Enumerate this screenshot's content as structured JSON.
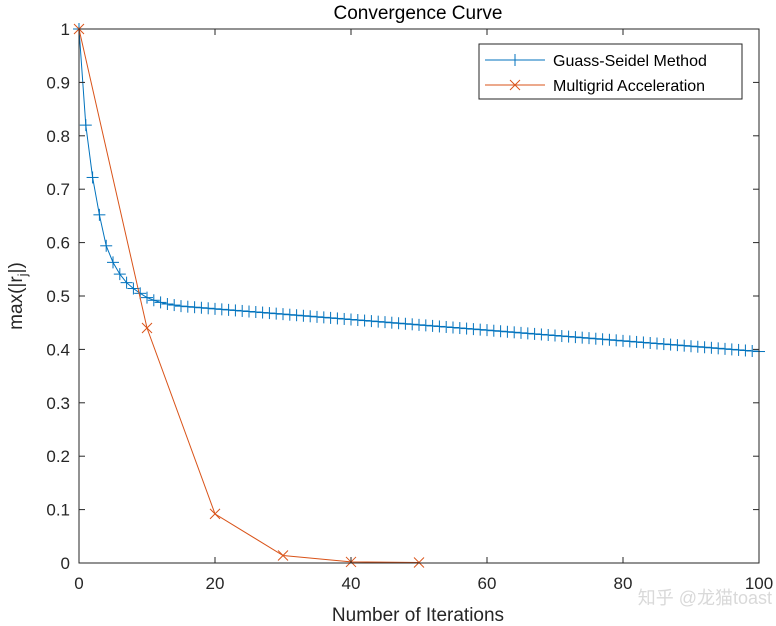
{
  "chart_data": {
    "type": "line",
    "title": "Convergence Curve",
    "xlabel": "Number of Iterations",
    "ylabel": "max(|r_j|)",
    "ylabel_main": "max(|r",
    "ylabel_sub": "j",
    "ylabel_end": "|)",
    "xlim": [
      0,
      100
    ],
    "ylim": [
      0,
      1
    ],
    "xticks": [
      0,
      20,
      40,
      60,
      80,
      100
    ],
    "yticks": [
      0,
      0.1,
      0.2,
      0.3,
      0.4,
      0.5,
      0.6,
      0.7,
      0.8,
      0.9,
      1
    ],
    "xtick_labels": [
      "0",
      "20",
      "40",
      "60",
      "80",
      "100"
    ],
    "ytick_labels": [
      "0",
      "0.1",
      "0.2",
      "0.3",
      "0.4",
      "0.5",
      "0.6",
      "0.7",
      "0.8",
      "0.9",
      "1"
    ],
    "grid": false,
    "legend_position": "top-right",
    "series": [
      {
        "name": "Guass-Seidel Method",
        "color": "#0072BD",
        "marker": "+",
        "x": [
          0,
          1,
          2,
          3,
          4,
          5,
          6,
          7,
          8,
          9,
          10,
          11,
          12,
          13,
          14,
          15,
          16,
          17,
          18,
          19,
          20,
          21,
          22,
          23,
          24,
          25,
          26,
          27,
          28,
          29,
          30,
          31,
          32,
          33,
          34,
          35,
          36,
          37,
          38,
          39,
          40,
          41,
          42,
          43,
          44,
          45,
          46,
          47,
          48,
          49,
          50,
          51,
          52,
          53,
          54,
          55,
          56,
          57,
          58,
          59,
          60,
          61,
          62,
          63,
          64,
          65,
          66,
          67,
          68,
          69,
          70,
          71,
          72,
          73,
          74,
          75,
          76,
          77,
          78,
          79,
          80,
          81,
          82,
          83,
          84,
          85,
          86,
          87,
          88,
          89,
          90,
          91,
          92,
          93,
          94,
          95,
          96,
          97,
          98,
          99,
          100
        ],
        "values": [
          1.0,
          0.82,
          0.722,
          0.652,
          0.594,
          0.563,
          0.541,
          0.525,
          0.514,
          0.505,
          0.497,
          0.492,
          0.488,
          0.485,
          0.483,
          0.481,
          0.48,
          0.479,
          0.478,
          0.477,
          0.476,
          0.475,
          0.474,
          0.473,
          0.472,
          0.471,
          0.47,
          0.469,
          0.468,
          0.467,
          0.466,
          0.465,
          0.464,
          0.463,
          0.462,
          0.461,
          0.46,
          0.459,
          0.458,
          0.457,
          0.456,
          0.455,
          0.454,
          0.453,
          0.452,
          0.451,
          0.45,
          0.449,
          0.448,
          0.447,
          0.446,
          0.445,
          0.444,
          0.443,
          0.442,
          0.441,
          0.44,
          0.439,
          0.438,
          0.437,
          0.436,
          0.435,
          0.434,
          0.433,
          0.432,
          0.431,
          0.43,
          0.429,
          0.428,
          0.427,
          0.426,
          0.425,
          0.424,
          0.423,
          0.422,
          0.421,
          0.42,
          0.419,
          0.418,
          0.417,
          0.416,
          0.415,
          0.414,
          0.413,
          0.412,
          0.411,
          0.41,
          0.409,
          0.408,
          0.407,
          0.406,
          0.405,
          0.404,
          0.403,
          0.402,
          0.401,
          0.4,
          0.399,
          0.398,
          0.397,
          0.396
        ]
      },
      {
        "name": "Multigrid Acceleration",
        "color": "#D95319",
        "marker": "x",
        "x": [
          0,
          10,
          20,
          30,
          40,
          50
        ],
        "values": [
          1.0,
          0.44,
          0.092,
          0.014,
          0.002,
          0.001
        ]
      }
    ]
  },
  "watermark": "知乎 @龙猫toast"
}
